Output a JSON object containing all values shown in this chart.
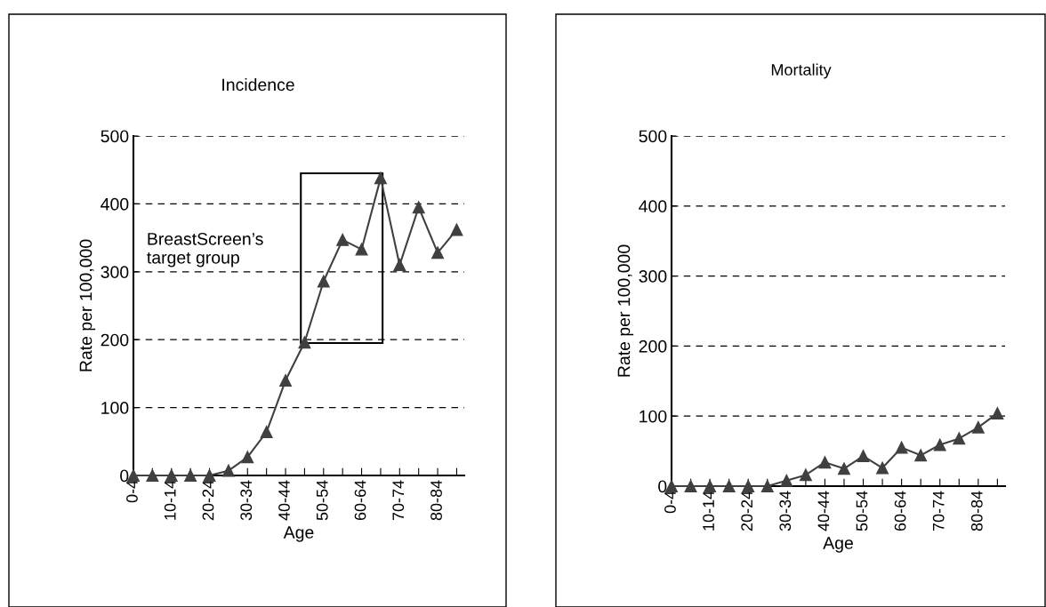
{
  "chart_data": [
    {
      "type": "line",
      "title": "Incidence",
      "xlabel": "Age",
      "ylabel": "Rate per 100,000",
      "categories": [
        "0-4",
        null,
        "10-14",
        null,
        "20-24",
        null,
        "30-34",
        null,
        "40-44",
        null,
        "50-54",
        null,
        "60-64",
        null,
        "70-74",
        null,
        "80-84",
        null
      ],
      "series": [
        {
          "color": "#404040",
          "values": [
            0,
            0,
            0,
            0,
            0,
            7,
            27,
            64,
            140,
            196,
            286,
            347,
            333,
            438,
            310,
            395,
            328,
            362
          ]
        }
      ],
      "ylim": [
        0,
        500
      ],
      "yticks": [
        0,
        100,
        200,
        300,
        400,
        500
      ],
      "grid": "y",
      "marker": "triangle",
      "line_style": "solid",
      "annotations": [
        "BreastScreen’s\ntarget group"
      ]
    },
    {
      "type": "line",
      "title": "Mortality",
      "xlabel": "Age",
      "ylabel": "Rate per 100,000",
      "categories": [
        "0-4",
        null,
        "10-14",
        null,
        "20-24",
        null,
        "30-34",
        null,
        "40-44",
        null,
        "50-54",
        null,
        "60-64",
        null,
        "70-74",
        null,
        "80-84",
        null
      ],
      "series": [
        {
          "color": "#404040",
          "values": [
            0,
            0,
            0,
            0,
            0,
            0,
            8,
            16,
            34,
            25,
            43,
            26,
            55,
            44,
            59,
            68,
            84,
            104
          ]
        }
      ],
      "ylim": [
        0,
        500
      ],
      "yticks": [
        0,
        100,
        200,
        300,
        400,
        500
      ],
      "grid": "y",
      "marker": "triangle",
      "line_style": "solid"
    }
  ]
}
